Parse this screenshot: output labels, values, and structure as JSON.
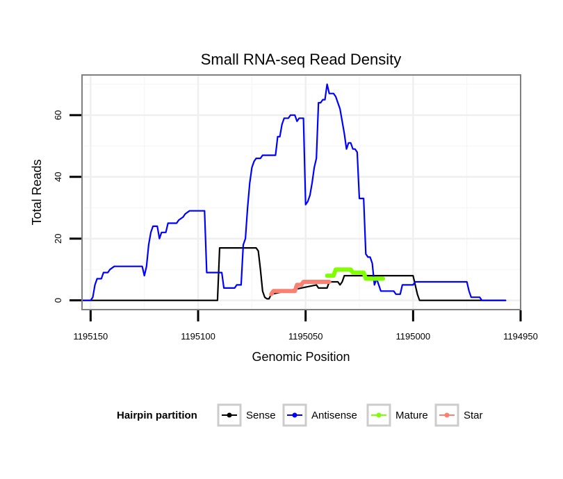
{
  "chart_data": {
    "type": "line",
    "title": "Small RNA-seq Read Density",
    "xlabel": "Genomic Position",
    "ylabel": "Total Reads",
    "x_reversed": true,
    "xlim": [
      1195154,
      1194950
    ],
    "ylim": [
      -3,
      73
    ],
    "x_ticks": [
      1195150,
      1195100,
      1195050,
      1195000,
      1194950
    ],
    "x_tick_labels": [
      "1195150",
      "1195100",
      "1195050",
      "1195000",
      "1194950"
    ],
    "y_ticks": [
      0,
      20,
      40,
      60
    ],
    "y_tick_labels": [
      "0",
      "20",
      "40",
      "60"
    ],
    "grid": true,
    "legend": {
      "title": "Hairpin partition",
      "position": "bottom",
      "entries": [
        {
          "label": "Sense",
          "color": "#000000"
        },
        {
          "label": "Antisense",
          "color": "#0000ff"
        },
        {
          "label": "Mature",
          "color": "#7fff00"
        },
        {
          "label": "Star",
          "color": "#fa8072"
        }
      ]
    },
    "series": [
      {
        "name": "Sense",
        "color": "#000000",
        "width": 2.2,
        "points": [
          [
            1195154,
            0
          ],
          [
            1195091,
            0
          ],
          [
            1195090,
            17
          ],
          [
            1195074,
            17
          ],
          [
            1195073,
            17
          ],
          [
            1195072,
            16
          ],
          [
            1195071,
            10
          ],
          [
            1195070,
            3
          ],
          [
            1195069,
            1
          ],
          [
            1195068,
            0.5
          ],
          [
            1195067,
            0.5
          ],
          [
            1195066,
            2
          ],
          [
            1195045,
            5
          ],
          [
            1195044,
            4
          ],
          [
            1195040,
            4
          ],
          [
            1195039,
            6
          ],
          [
            1195035,
            6
          ],
          [
            1195034,
            5
          ],
          [
            1195033,
            6
          ],
          [
            1195032,
            8
          ],
          [
            1195000,
            8
          ],
          [
            1194998,
            2
          ],
          [
            1194997,
            0
          ],
          [
            1194957,
            0
          ]
        ]
      },
      {
        "name": "Antisense",
        "color": "#0000ff",
        "width": 2.2,
        "points": [
          [
            1195154,
            0
          ],
          [
            1195150,
            0
          ],
          [
            1195149,
            1
          ],
          [
            1195148,
            5
          ],
          [
            1195147,
            7
          ],
          [
            1195145,
            7
          ],
          [
            1195144,
            9
          ],
          [
            1195142,
            9
          ],
          [
            1195141,
            10
          ],
          [
            1195139,
            11
          ],
          [
            1195126,
            11
          ],
          [
            1195125,
            8
          ],
          [
            1195124,
            11
          ],
          [
            1195123,
            18
          ],
          [
            1195122,
            22
          ],
          [
            1195121,
            24
          ],
          [
            1195119,
            24
          ],
          [
            1195118,
            20
          ],
          [
            1195117,
            22
          ],
          [
            1195115,
            22
          ],
          [
            1195114,
            25
          ],
          [
            1195110,
            25
          ],
          [
            1195109,
            26
          ],
          [
            1195107,
            27
          ],
          [
            1195106,
            28
          ],
          [
            1195104,
            29
          ],
          [
            1195097,
            29
          ],
          [
            1195096,
            9
          ],
          [
            1195089,
            9
          ],
          [
            1195088,
            4
          ],
          [
            1195083,
            4
          ],
          [
            1195082,
            5
          ],
          [
            1195080,
            5
          ],
          [
            1195079,
            18
          ],
          [
            1195078,
            20
          ],
          [
            1195077,
            30
          ],
          [
            1195076,
            38
          ],
          [
            1195075,
            43
          ],
          [
            1195074,
            45
          ],
          [
            1195073,
            46
          ],
          [
            1195071,
            46
          ],
          [
            1195070,
            47
          ],
          [
            1195064,
            47
          ],
          [
            1195063,
            53
          ],
          [
            1195062,
            53
          ],
          [
            1195061,
            57
          ],
          [
            1195060,
            59
          ],
          [
            1195059,
            59
          ],
          [
            1195058,
            59
          ],
          [
            1195057,
            60
          ],
          [
            1195055,
            60
          ],
          [
            1195054,
            58
          ],
          [
            1195053,
            59
          ],
          [
            1195051,
            59
          ],
          [
            1195050,
            31
          ],
          [
            1195049,
            32
          ],
          [
            1195048,
            34
          ],
          [
            1195047,
            38
          ],
          [
            1195046,
            43
          ],
          [
            1195045,
            46
          ],
          [
            1195044,
            64
          ],
          [
            1195043,
            64
          ],
          [
            1195042,
            65
          ],
          [
            1195041,
            65
          ],
          [
            1195040,
            70
          ],
          [
            1195039,
            67
          ],
          [
            1195037,
            67
          ],
          [
            1195036,
            66
          ],
          [
            1195035,
            64
          ],
          [
            1195034,
            62
          ],
          [
            1195033,
            58
          ],
          [
            1195032,
            54
          ],
          [
            1195031,
            49
          ],
          [
            1195030,
            51
          ],
          [
            1195029,
            51
          ],
          [
            1195028,
            49
          ],
          [
            1195027,
            49
          ],
          [
            1195026,
            48
          ],
          [
            1195025,
            33
          ],
          [
            1195023,
            33
          ],
          [
            1195022,
            15
          ],
          [
            1195021,
            14
          ],
          [
            1195020,
            14
          ],
          [
            1195019,
            12
          ],
          [
            1195018,
            5
          ],
          [
            1195017,
            7
          ],
          [
            1195016,
            5
          ],
          [
            1195015,
            3
          ],
          [
            1195009,
            3
          ],
          [
            1195008,
            2
          ],
          [
            1195006,
            2
          ],
          [
            1195005,
            5
          ],
          [
            1195000,
            5
          ],
          [
            1194999,
            6
          ],
          [
            1194975,
            6
          ],
          [
            1194974,
            3
          ],
          [
            1194973,
            1
          ],
          [
            1194969,
            1
          ],
          [
            1194968,
            0
          ],
          [
            1194957,
            0
          ]
        ]
      },
      {
        "name": "Star",
        "color": "#fa8072",
        "width": 6,
        "points": [
          [
            1195066,
            2
          ],
          [
            1195065,
            3
          ],
          [
            1195055,
            3
          ],
          [
            1195054,
            5
          ],
          [
            1195052,
            5
          ],
          [
            1195051,
            6
          ],
          [
            1195039,
            6
          ]
        ]
      },
      {
        "name": "Mature",
        "color": "#7fff00",
        "width": 6,
        "points": [
          [
            1195040,
            8
          ],
          [
            1195037,
            8
          ],
          [
            1195036,
            10
          ],
          [
            1195029,
            10
          ],
          [
            1195028,
            9
          ],
          [
            1195023,
            9
          ],
          [
            1195022,
            7
          ],
          [
            1195014,
            7
          ]
        ]
      }
    ]
  }
}
